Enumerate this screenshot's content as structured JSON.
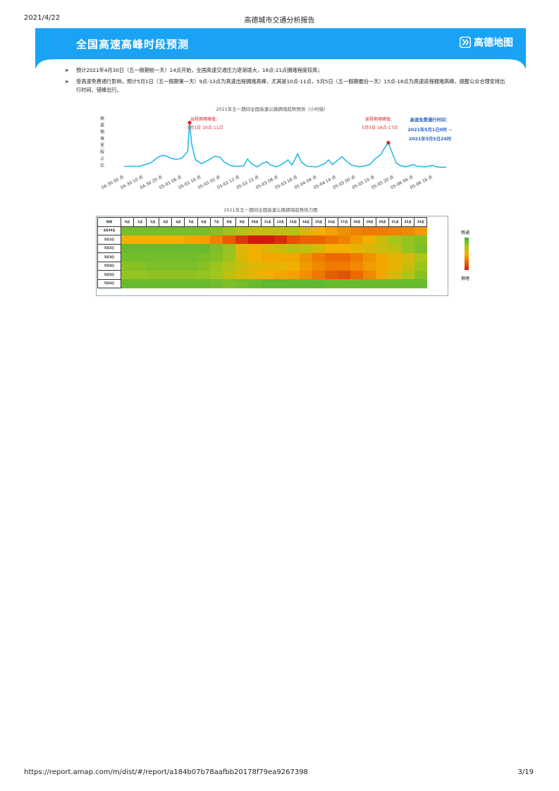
{
  "print_header": {
    "date": "2021/4/22",
    "title": "高德城市交通分析报告"
  },
  "banner": {
    "title": "全国高速高峰时段预测",
    "brand": "高德地图",
    "color": "#1aa3f5"
  },
  "bullets": [
    "预计2021年4月30日（五一假期前一天）14点开始，全国高速交通压力逐渐增大，18点-21点拥堵程度较高；",
    "受高速免费通行影响，预计5月1日（五一假期第一天）9点-13点为高速出程拥堵高峰，尤其是10点-11点，5月5日（五一假期最后一天）15点-18点为高速返程拥堵高峰，提醒公众合理安排出行时间，错峰出行。"
  ],
  "chart_data": [
    {
      "type": "line",
      "title": "2021年五一期间全国高速公路拥堵趋势预测（小时级）",
      "ylabel": "高速拥堵里程占比",
      "xlabel": "",
      "x_ticks": [
        "04-30 00 点",
        "04-30 10 点",
        "04-30 20 点",
        "05-01 06 点",
        "05-01 16 点",
        "05-02 02 点",
        "05-02 12 点",
        "05-02 22 点",
        "05-03 08 点",
        "05-03 18 点",
        "05-04 04 点",
        "05-04 14 点",
        "05-05 00 点",
        "05-05 10 点",
        "05-05 20 点",
        "05-06 06 点",
        "05-06 16 点"
      ],
      "x_start": "04-30 00 点",
      "x_end": "05-06 23 点",
      "hours": 168,
      "y_range": [
        0,
        1
      ],
      "grid": false,
      "line_color": "#29b8e8",
      "key_points": [
        [
          0,
          0.06
        ],
        [
          8,
          0.06
        ],
        [
          14,
          0.14
        ],
        [
          18,
          0.27
        ],
        [
          20,
          0.3
        ],
        [
          22,
          0.28
        ],
        [
          24,
          0.24
        ],
        [
          27,
          0.21
        ],
        [
          30,
          0.24
        ],
        [
          33,
          0.38
        ],
        [
          34,
          1.0
        ],
        [
          35,
          0.55
        ],
        [
          37,
          0.2
        ],
        [
          40,
          0.12
        ],
        [
          44,
          0.2
        ],
        [
          47,
          0.28
        ],
        [
          50,
          0.25
        ],
        [
          52,
          0.15
        ],
        [
          55,
          0.08
        ],
        [
          58,
          0.06
        ],
        [
          62,
          0.07
        ],
        [
          64,
          0.22
        ],
        [
          66,
          0.12
        ],
        [
          69,
          0.05
        ],
        [
          72,
          0.13
        ],
        [
          74,
          0.16
        ],
        [
          76,
          0.09
        ],
        [
          79,
          0.05
        ],
        [
          82,
          0.11
        ],
        [
          85,
          0.2
        ],
        [
          87,
          0.09
        ],
        [
          90,
          0.33
        ],
        [
          92,
          0.15
        ],
        [
          95,
          0.06
        ],
        [
          100,
          0.05
        ],
        [
          104,
          0.12
        ],
        [
          106,
          0.2
        ],
        [
          108,
          0.1
        ],
        [
          111,
          0.2
        ],
        [
          113,
          0.27
        ],
        [
          115,
          0.18
        ],
        [
          118,
          0.09
        ],
        [
          122,
          0.05
        ],
        [
          126,
          0.08
        ],
        [
          128,
          0.12
        ],
        [
          130,
          0.22
        ],
        [
          133,
          0.31
        ],
        [
          135,
          0.45
        ],
        [
          137,
          0.57
        ],
        [
          139,
          0.35
        ],
        [
          141,
          0.14
        ],
        [
          143,
          0.08
        ],
        [
          146,
          0.05
        ],
        [
          150,
          0.1
        ],
        [
          152,
          0.06
        ],
        [
          156,
          0.05
        ],
        [
          160,
          0.08
        ],
        [
          162,
          0.05
        ],
        [
          166,
          0.04
        ],
        [
          167,
          0.05
        ]
      ],
      "annotations": [
        {
          "label": "出程拥堵峰值：",
          "text": "5月1日  10点-11点",
          "hour": 34
        },
        {
          "label": "返程拥堵峰值：",
          "text": "5月5日  16点-17点",
          "hour": 137
        }
      ],
      "note": {
        "line1": "高速免费通行时间：",
        "line2": "2021年5月1日0时 ~",
        "line3": "2021年5月5日24时"
      }
    },
    {
      "type": "heatmap",
      "title": "2021年五一期间全国高速公路拥堵趋势热力图",
      "corner_label": "时间",
      "columns": [
        "0点",
        "1点",
        "2点",
        "3点",
        "4点",
        "5点",
        "6点",
        "7点",
        "8点",
        "9点",
        "10点",
        "11点",
        "12点",
        "13点",
        "14点",
        "15点",
        "16点",
        "17点",
        "18点",
        "19点",
        "20点",
        "21点",
        "22点",
        "23点"
      ],
      "rows": [
        "4月30日",
        "5月1日",
        "5月2日",
        "5月3日",
        "5月4日",
        "5月5日",
        "5月6日"
      ],
      "scale": "0 = 畅通 (green) … 1 = 拥堵 (red)",
      "values": [
        [
          0.2,
          0.2,
          0.2,
          0.2,
          0.2,
          0.2,
          0.2,
          0.25,
          0.32,
          0.38,
          0.42,
          0.42,
          0.42,
          0.4,
          0.48,
          0.55,
          0.6,
          0.65,
          0.7,
          0.72,
          0.72,
          0.7,
          0.68,
          0.62
        ],
        [
          0.55,
          0.55,
          0.55,
          0.55,
          0.55,
          0.58,
          0.6,
          0.7,
          0.82,
          0.92,
          1.0,
          1.0,
          0.95,
          0.85,
          0.8,
          0.8,
          0.75,
          0.7,
          0.62,
          0.55,
          0.45,
          0.35,
          0.3,
          0.25
        ],
        [
          0.15,
          0.15,
          0.15,
          0.15,
          0.15,
          0.15,
          0.15,
          0.22,
          0.3,
          0.5,
          0.55,
          0.5,
          0.45,
          0.4,
          0.42,
          0.48,
          0.55,
          0.55,
          0.52,
          0.48,
          0.45,
          0.42,
          0.3,
          0.22
        ],
        [
          0.18,
          0.18,
          0.18,
          0.18,
          0.18,
          0.18,
          0.2,
          0.25,
          0.32,
          0.48,
          0.55,
          0.58,
          0.58,
          0.58,
          0.65,
          0.72,
          0.78,
          0.78,
          0.72,
          0.65,
          0.58,
          0.52,
          0.48,
          0.38
        ],
        [
          0.25,
          0.25,
          0.22,
          0.22,
          0.22,
          0.22,
          0.25,
          0.32,
          0.38,
          0.45,
          0.5,
          0.52,
          0.52,
          0.55,
          0.62,
          0.68,
          0.72,
          0.72,
          0.68,
          0.62,
          0.58,
          0.52,
          0.45,
          0.32
        ],
        [
          0.3,
          0.3,
          0.28,
          0.28,
          0.28,
          0.28,
          0.3,
          0.35,
          0.42,
          0.48,
          0.52,
          0.55,
          0.58,
          0.6,
          0.66,
          0.74,
          0.82,
          0.85,
          0.78,
          0.68,
          0.58,
          0.48,
          0.38,
          0.25
        ],
        [
          0.15,
          0.15,
          0.15,
          0.15,
          0.15,
          0.15,
          0.15,
          0.18,
          0.22,
          0.18,
          0.15,
          0.12,
          0.12,
          0.12,
          0.12,
          0.12,
          0.14,
          0.15,
          0.15,
          0.15,
          0.15,
          0.15,
          0.15,
          0.15
        ]
      ],
      "legend": {
        "top": "畅通",
        "bottom": "拥堵"
      }
    }
  ],
  "print_footer": {
    "url": "https://report.amap.com/m/dist/#/report/a184b07b78aafbb20178f79ea9267398",
    "page": "3/19"
  }
}
